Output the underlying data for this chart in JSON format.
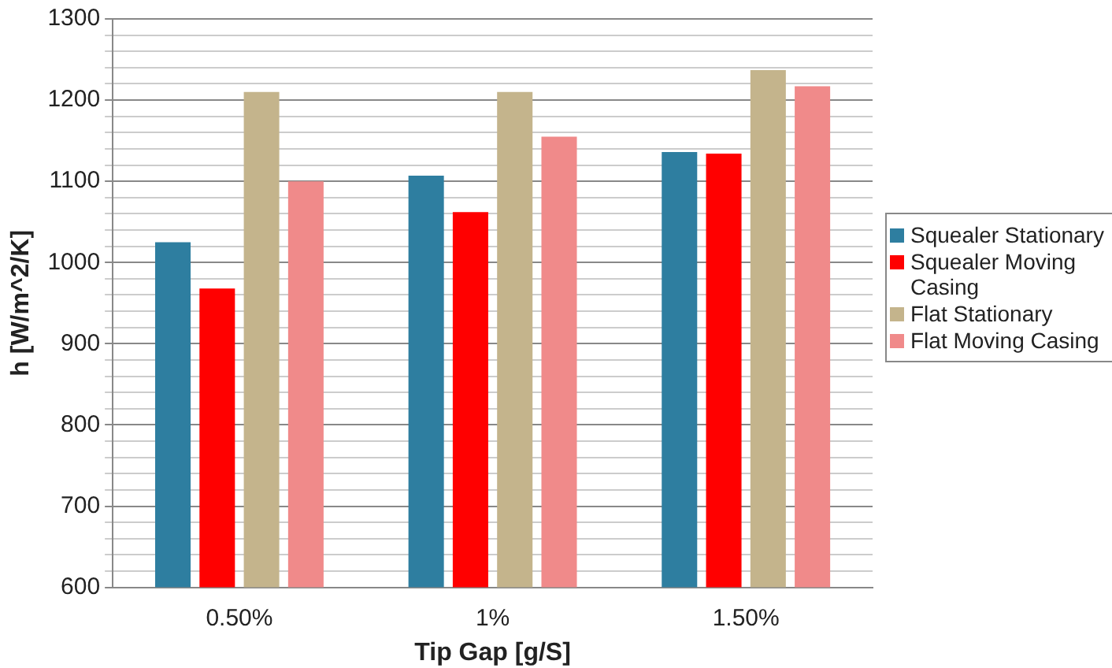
{
  "chart_data": {
    "type": "bar",
    "xlabel": "Tip Gap [g/S]",
    "ylabel": "h [W/m^2/K]",
    "categories": [
      "0.50%",
      "1%",
      "1.50%"
    ],
    "series": [
      {
        "name": "Squealer Stationary",
        "color": "#2e7ea0",
        "values": [
          1025,
          1107,
          1136
        ]
      },
      {
        "name": "Squealer Moving Casing",
        "color": "#ff0000",
        "values": [
          968,
          1062,
          1134
        ]
      },
      {
        "name": "Flat Stationary",
        "color": "#c4b48c",
        "values": [
          1210,
          1210,
          1237
        ]
      },
      {
        "name": "Flat Moving Casing",
        "color": "#f08a8a",
        "values": [
          1100,
          1155,
          1217
        ]
      }
    ],
    "ylim": [
      600,
      1300
    ],
    "yticks": [
      600,
      {
        "value": 620,
        "label": null
      },
      {
        "value": 640,
        "label": null
      },
      {
        "value": 660,
        "label": null
      },
      {
        "value": 680,
        "label": null
      },
      700,
      {
        "value": 720,
        "label": null
      },
      {
        "value": 740,
        "label": null
      },
      {
        "value": 760,
        "label": null
      },
      {
        "value": 780,
        "label": null
      },
      800,
      {
        "value": 820,
        "label": null
      },
      {
        "value": 840,
        "label": null
      },
      {
        "value": 860,
        "label": null
      },
      {
        "value": 880,
        "label": null
      },
      900,
      {
        "value": 920,
        "label": null
      },
      {
        "value": 940,
        "label": null
      },
      {
        "value": 960,
        "label": null
      },
      {
        "value": 980,
        "label": null
      },
      1000,
      {
        "value": 1020,
        "label": null
      },
      {
        "value": 1040,
        "label": null
      },
      {
        "value": 1060,
        "label": null
      },
      {
        "value": 1080,
        "label": null
      },
      1100,
      {
        "value": 1120,
        "label": null
      },
      {
        "value": 1140,
        "label": null
      },
      {
        "value": 1160,
        "label": null
      },
      {
        "value": 1180,
        "label": null
      },
      1200,
      {
        "value": 1220,
        "label": null
      },
      {
        "value": 1240,
        "label": null
      },
      {
        "value": 1260,
        "label": null
      },
      {
        "value": 1280,
        "label": null
      },
      1300
    ],
    "grid": "y",
    "legend": "right"
  }
}
